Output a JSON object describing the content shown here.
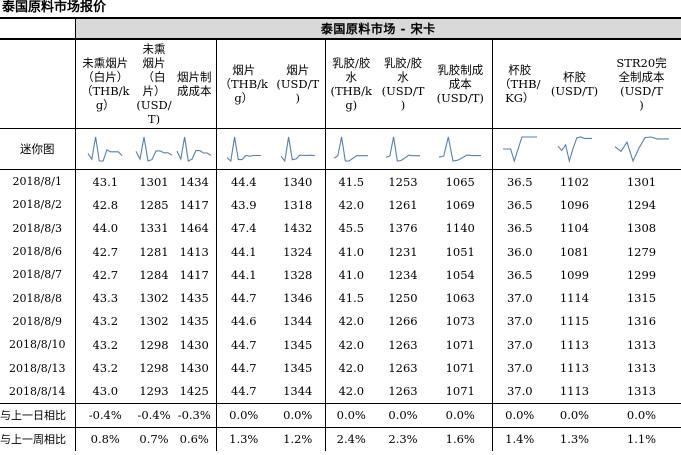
{
  "page": {
    "title": "泰国原料市场报价"
  },
  "table": {
    "group_title": "泰国原料市场 - 宋卡",
    "columns": [
      "未熏烟片\n（白片）\n（THB/k\ng）",
      "未熏\n烟片\n（白\n片）\n(USD/\nT)",
      "烟片制\n成成本",
      "烟片\n（THB/k\ng）",
      "烟片\n(USD/T\n)",
      "乳胶/胶\n水\n(THB/k\ng)",
      "乳胶/胶\n水\n(USD/T\n)",
      "乳胶制成\n成本\n(USD/T)",
      "杯胶\n（THB/\nKG）",
      "杯胶\n(USD/T)",
      "STR20完\n全制成本\n(USD/T\n)"
    ],
    "sparkline_label": "迷你图",
    "rows": [
      {
        "date": "2018/8/1",
        "values": [
          "43.1",
          "1301",
          "1434",
          "44.4",
          "1340",
          "41.5",
          "1253",
          "1065",
          "36.5",
          "1102",
          "1301"
        ]
      },
      {
        "date": "2018/8/2",
        "values": [
          "42.8",
          "1285",
          "1417",
          "43.9",
          "1318",
          "42.0",
          "1261",
          "1069",
          "36.5",
          "1096",
          "1294"
        ]
      },
      {
        "date": "2018/8/3",
        "values": [
          "44.0",
          "1331",
          "1464",
          "47.4",
          "1432",
          "45.5",
          "1376",
          "1140",
          "36.5",
          "1104",
          "1308"
        ]
      },
      {
        "date": "2018/8/6",
        "values": [
          "42.7",
          "1281",
          "1413",
          "44.1",
          "1324",
          "41.0",
          "1231",
          "1051",
          "36.0",
          "1081",
          "1279"
        ]
      },
      {
        "date": "2018/8/7",
        "values": [
          "42.7",
          "1284",
          "1417",
          "44.1",
          "1328",
          "41.0",
          "1234",
          "1054",
          "36.5",
          "1099",
          "1299"
        ]
      },
      {
        "date": "2018/8/8",
        "values": [
          "43.3",
          "1302",
          "1435",
          "44.7",
          "1346",
          "41.5",
          "1250",
          "1063",
          "37.0",
          "1114",
          "1315"
        ]
      },
      {
        "date": "2018/8/9",
        "values": [
          "43.2",
          "1302",
          "1435",
          "44.6",
          "1344",
          "42.0",
          "1266",
          "1073",
          "37.0",
          "1115",
          "1316"
        ]
      },
      {
        "date": "2018/8/10",
        "values": [
          "43.2",
          "1298",
          "1430",
          "44.7",
          "1345",
          "42.0",
          "1263",
          "1071",
          "37.0",
          "1113",
          "1313"
        ]
      },
      {
        "date": "2018/8/13",
        "values": [
          "43.2",
          "1298",
          "1430",
          "44.7",
          "1345",
          "42.0",
          "1263",
          "1071",
          "37.0",
          "1113",
          "1313"
        ]
      },
      {
        "date": "2018/8/14",
        "values": [
          "43.0",
          "1293",
          "1425",
          "44.7",
          "1344",
          "42.0",
          "1263",
          "1071",
          "37.0",
          "1113",
          "1313"
        ]
      }
    ],
    "comparisons": [
      {
        "label": "与上一日相比",
        "values": [
          "-0.4%",
          "-0.4%",
          "-0.3%",
          "0.0%",
          "0.0%",
          "0.0%",
          "0.0%",
          "0.0%",
          "0.0%",
          "0.0%",
          "0.0%"
        ]
      },
      {
        "label": "与上一周相比",
        "values": [
          "0.8%",
          "0.7%",
          "0.6%",
          "1.3%",
          "1.2%",
          "2.4%",
          "2.3%",
          "1.6%",
          "1.4%",
          "1.3%",
          "1.1%"
        ]
      }
    ]
  },
  "colors": {
    "header_bar": "#d9d9d9",
    "sparkline": "#5b7fa8",
    "border": "#000000"
  }
}
